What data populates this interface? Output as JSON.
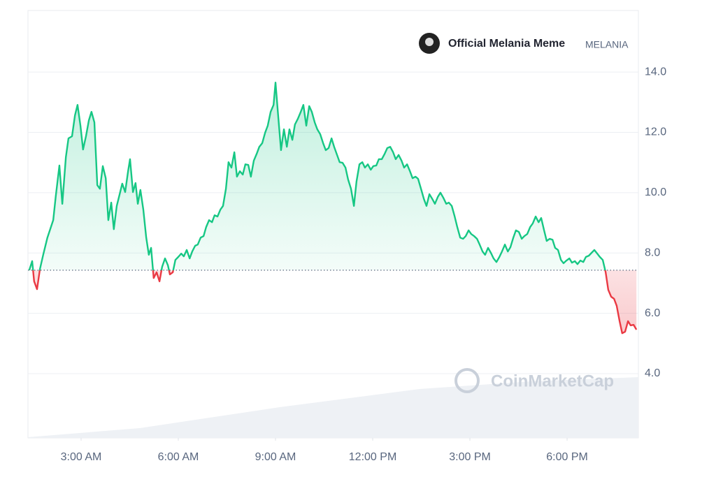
{
  "chart_data": {
    "type": "line",
    "series": [
      {
        "name": "Official Melania Meme",
        "symbol": "MELANIA",
        "colors": {
          "up": "#16c784",
          "down": "#ea3943"
        },
        "values": [
          7.43,
          7.73,
          7.06,
          6.8,
          7.47,
          7.94,
          8.51,
          9.09,
          9.9,
          10.9,
          9.63,
          11.18,
          11.8,
          11.87,
          12.56,
          12.91,
          12.22,
          11.43,
          11.87,
          12.4,
          12.68,
          12.33,
          10.25,
          10.13,
          10.88,
          10.48,
          9.09,
          9.67,
          8.79,
          9.56,
          9.95,
          10.3,
          10.02,
          10.71,
          11.11,
          10.02,
          10.32,
          9.63,
          10.09,
          9.44,
          8.51,
          7.94,
          8.17,
          7.17,
          7.36,
          7.06,
          7.54,
          7.82,
          7.59,
          7.29,
          7.36,
          7.77,
          7.87,
          7.98,
          7.89,
          8.1,
          7.82,
          8.05,
          8.24,
          8.28,
          8.51,
          8.56,
          8.86,
          9.09,
          9.02,
          9.25,
          9.21,
          9.44,
          9.56,
          10.13,
          11.01,
          10.83,
          11.34,
          10.53,
          10.71,
          10.6,
          10.94,
          10.92,
          10.53,
          11.06,
          11.29,
          11.52,
          11.64,
          11.99,
          12.22,
          12.68,
          12.91,
          13.65,
          12.45,
          11.41,
          12.1,
          11.52,
          12.1,
          11.75,
          12.26,
          12.45,
          12.68,
          12.91,
          12.22,
          12.87,
          12.68,
          12.33,
          12.1,
          11.94,
          11.64,
          11.41,
          11.48,
          11.8,
          11.52,
          11.25,
          11.01,
          10.99,
          10.83,
          10.44,
          10.13,
          9.56,
          10.37,
          10.94,
          11.01,
          10.83,
          10.94,
          10.76,
          10.88,
          10.9,
          11.11,
          11.11,
          11.29,
          11.48,
          11.52,
          11.34,
          11.11,
          11.25,
          11.06,
          10.83,
          10.94,
          10.71,
          10.48,
          10.53,
          10.46,
          10.13,
          9.79,
          9.56,
          9.95,
          9.79,
          9.63,
          9.86,
          10.0,
          9.83,
          9.63,
          9.67,
          9.56,
          9.21,
          8.86,
          8.51,
          8.47,
          8.56,
          8.75,
          8.63,
          8.56,
          8.47,
          8.28,
          8.05,
          7.94,
          8.17,
          8.0,
          7.82,
          7.7,
          7.87,
          8.05,
          8.28,
          8.05,
          8.19,
          8.51,
          8.75,
          8.7,
          8.47,
          8.56,
          8.63,
          8.86,
          8.98,
          9.21,
          9.02,
          9.16,
          8.75,
          8.4,
          8.47,
          8.44,
          8.17,
          8.1,
          7.77,
          7.66,
          7.75,
          7.82,
          7.68,
          7.73,
          7.63,
          7.75,
          7.7,
          7.87,
          7.91,
          8.0,
          8.1,
          7.98,
          7.87,
          7.77,
          7.36,
          6.78,
          6.55,
          6.48,
          6.25,
          5.74,
          5.34,
          5.39,
          5.74,
          5.6,
          5.62,
          5.46
        ]
      }
    ],
    "x": [
      1.4,
      1.49,
      1.55,
      1.64,
      1.73,
      1.83,
      1.96,
      2.14,
      2.22,
      2.33,
      2.42,
      2.53,
      2.61,
      2.72,
      2.81,
      2.89,
      2.98,
      3.06,
      3.15,
      3.24,
      3.32,
      3.41,
      3.5,
      3.58,
      3.67,
      3.76,
      3.84,
      3.93,
      4.01,
      4.1,
      4.19,
      4.27,
      4.36,
      4.45,
      4.51,
      4.6,
      4.68,
      4.75,
      4.83,
      4.92,
      5.01,
      5.09,
      5.16,
      5.24,
      5.33,
      5.42,
      5.5,
      5.59,
      5.68,
      5.74,
      5.83,
      5.91,
      6.0,
      6.09,
      6.17,
      6.26,
      6.35,
      6.43,
      6.52,
      6.6,
      6.69,
      6.78,
      6.86,
      6.95,
      7.04,
      7.12,
      7.21,
      7.3,
      7.38,
      7.47,
      7.55,
      7.64,
      7.73,
      7.81,
      7.9,
      7.99,
      8.07,
      8.16,
      8.24,
      8.33,
      8.42,
      8.5,
      8.59,
      8.68,
      8.76,
      8.85,
      8.94,
      9.0,
      9.09,
      9.17,
      9.26,
      9.35,
      9.43,
      9.52,
      9.6,
      9.69,
      9.78,
      9.86,
      9.95,
      10.04,
      10.12,
      10.21,
      10.29,
      10.38,
      10.47,
      10.55,
      10.64,
      10.73,
      10.81,
      10.9,
      10.98,
      11.07,
      11.16,
      11.24,
      11.33,
      11.42,
      11.5,
      11.59,
      11.68,
      11.76,
      11.85,
      11.94,
      12.02,
      12.11,
      12.19,
      12.28,
      12.37,
      12.45,
      12.54,
      12.63,
      12.71,
      12.8,
      12.89,
      12.97,
      13.06,
      13.15,
      13.23,
      13.32,
      13.4,
      13.49,
      13.58,
      13.66,
      13.75,
      13.84,
      13.92,
      14.01,
      14.09,
      14.18,
      14.27,
      14.35,
      14.44,
      14.53,
      14.61,
      14.7,
      14.79,
      14.87,
      14.96,
      15.04,
      15.13,
      15.22,
      15.3,
      15.39,
      15.47,
      15.56,
      15.65,
      15.73,
      15.82,
      15.91,
      15.99,
      16.08,
      16.17,
      16.25,
      16.34,
      16.42,
      16.51,
      16.6,
      16.68,
      16.77,
      16.86,
      16.94,
      17.03,
      17.12,
      17.2,
      17.29,
      17.37,
      17.46,
      17.55,
      17.63,
      17.72,
      17.81,
      17.89,
      17.98,
      18.07,
      18.15,
      18.24,
      18.32,
      18.41,
      18.5,
      18.58,
      18.67,
      18.75,
      18.84,
      18.93,
      19.01,
      19.1,
      19.19,
      19.27,
      19.36,
      19.45,
      19.53,
      19.62,
      19.7,
      19.79,
      19.88,
      19.96,
      20.05,
      20.14
    ],
    "xlim": [
      1.36,
      20.2
    ],
    "xticks": [
      {
        "value": 3,
        "label": "3:00 AM"
      },
      {
        "value": 6,
        "label": "6:00 AM"
      },
      {
        "value": 9,
        "label": "9:00 AM"
      },
      {
        "value": 12,
        "label": "12:00 PM"
      },
      {
        "value": 15,
        "label": "3:00 PM"
      },
      {
        "value": 18,
        "label": "6:00 PM"
      }
    ],
    "ylim": [
      1.87,
      16.04
    ],
    "yticks": [
      {
        "value": 4,
        "label": "4.0"
      },
      {
        "value": 6,
        "label": "6.0"
      },
      {
        "value": 8,
        "label": "8.0"
      },
      {
        "value": 10,
        "label": "10.0"
      },
      {
        "value": 12,
        "label": "12.0"
      },
      {
        "value": 14,
        "label": "14.0"
      }
    ],
    "baseline": 7.43,
    "grid": true,
    "watermark": "CoinMarketCap"
  }
}
